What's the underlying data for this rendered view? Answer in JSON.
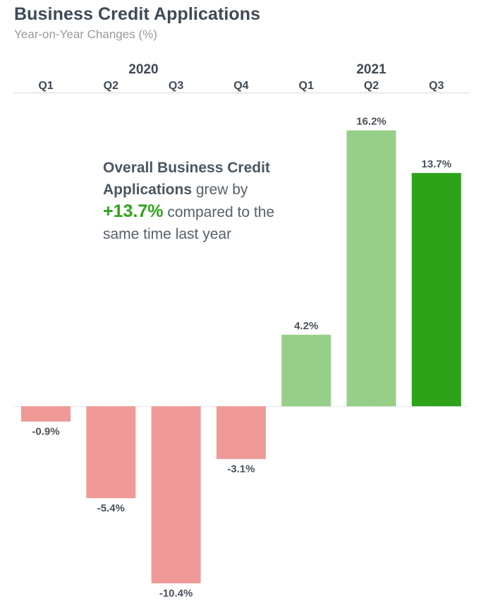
{
  "header": {
    "title": "Business Credit Applications",
    "subtitle": "Year-on-Year Changes (%)"
  },
  "annotation": {
    "strong": "Overall Business Credit Applications",
    "pre": " grew by",
    "highlight": "+13.7%",
    "post": " compared to the same time last year"
  },
  "colors": {
    "negative": "#ef9a96",
    "positive_light": "#97cf88",
    "positive_highlight": "#2ea31a",
    "text_dark": "#3f4a55"
  },
  "chart_data": {
    "type": "bar",
    "title": "Business Credit Applications",
    "subtitle": "Year-on-Year Changes (%)",
    "years": [
      {
        "label": "2020",
        "quarters": [
          "Q1",
          "Q2",
          "Q3",
          "Q4"
        ]
      },
      {
        "label": "2021",
        "quarters": [
          "Q1",
          "Q2",
          "Q3"
        ]
      }
    ],
    "categories": [
      "Q1",
      "Q2",
      "Q3",
      "Q4",
      "Q1",
      "Q2",
      "Q3"
    ],
    "values": [
      -0.9,
      -5.4,
      -10.4,
      -3.1,
      4.2,
      16.2,
      13.7
    ],
    "labels": [
      "-0.9%",
      "-5.4%",
      "-10.4%",
      "-3.1%",
      "4.2%",
      "16.2%",
      "13.7%"
    ],
    "bar_colors": [
      "#ef9a96",
      "#ef9a96",
      "#ef9a96",
      "#ef9a96",
      "#97cf88",
      "#97cf88",
      "#2ea31a"
    ],
    "ylim": [
      -10.4,
      16.2
    ],
    "xlabel": "",
    "ylabel": "",
    "grid": false,
    "legend": "none"
  }
}
